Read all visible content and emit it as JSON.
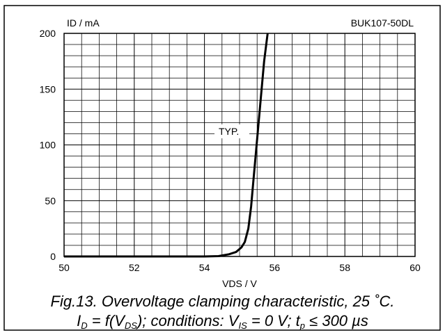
{
  "chart_data": {
    "type": "line",
    "ylabel": "ID / mA",
    "xlabel": "VDS / V",
    "device_label": "BUK107-50DL",
    "annotation": "TYP.",
    "xlim": [
      50,
      60
    ],
    "ylim": [
      0,
      200
    ],
    "x_ticks": [
      50,
      52,
      54,
      56,
      58,
      60
    ],
    "y_ticks": [
      0,
      50,
      100,
      150,
      200
    ],
    "x_minor_step": 0.5,
    "y_minor_step": 10,
    "grid": true,
    "series": [
      {
        "x": [
          50.0,
          54.0,
          54.4,
          54.7,
          54.9,
          55.05,
          55.15,
          55.25,
          55.33,
          55.4,
          55.5,
          55.6,
          55.7,
          55.8
        ],
        "y": [
          0,
          0,
          0.3,
          2,
          4,
          8,
          13,
          25,
          45,
          70,
          105,
          140,
          175,
          200
        ]
      }
    ]
  },
  "caption": {
    "line1": "Fig.13.   Overvoltage clamping characteristic, 25 ˚C.",
    "line2_parts": [
      "I",
      "D",
      " = f(V",
      "DS",
      "); conditions: V",
      "IS",
      " = 0 V; t",
      "p",
      " ≤ 300 µs"
    ]
  }
}
